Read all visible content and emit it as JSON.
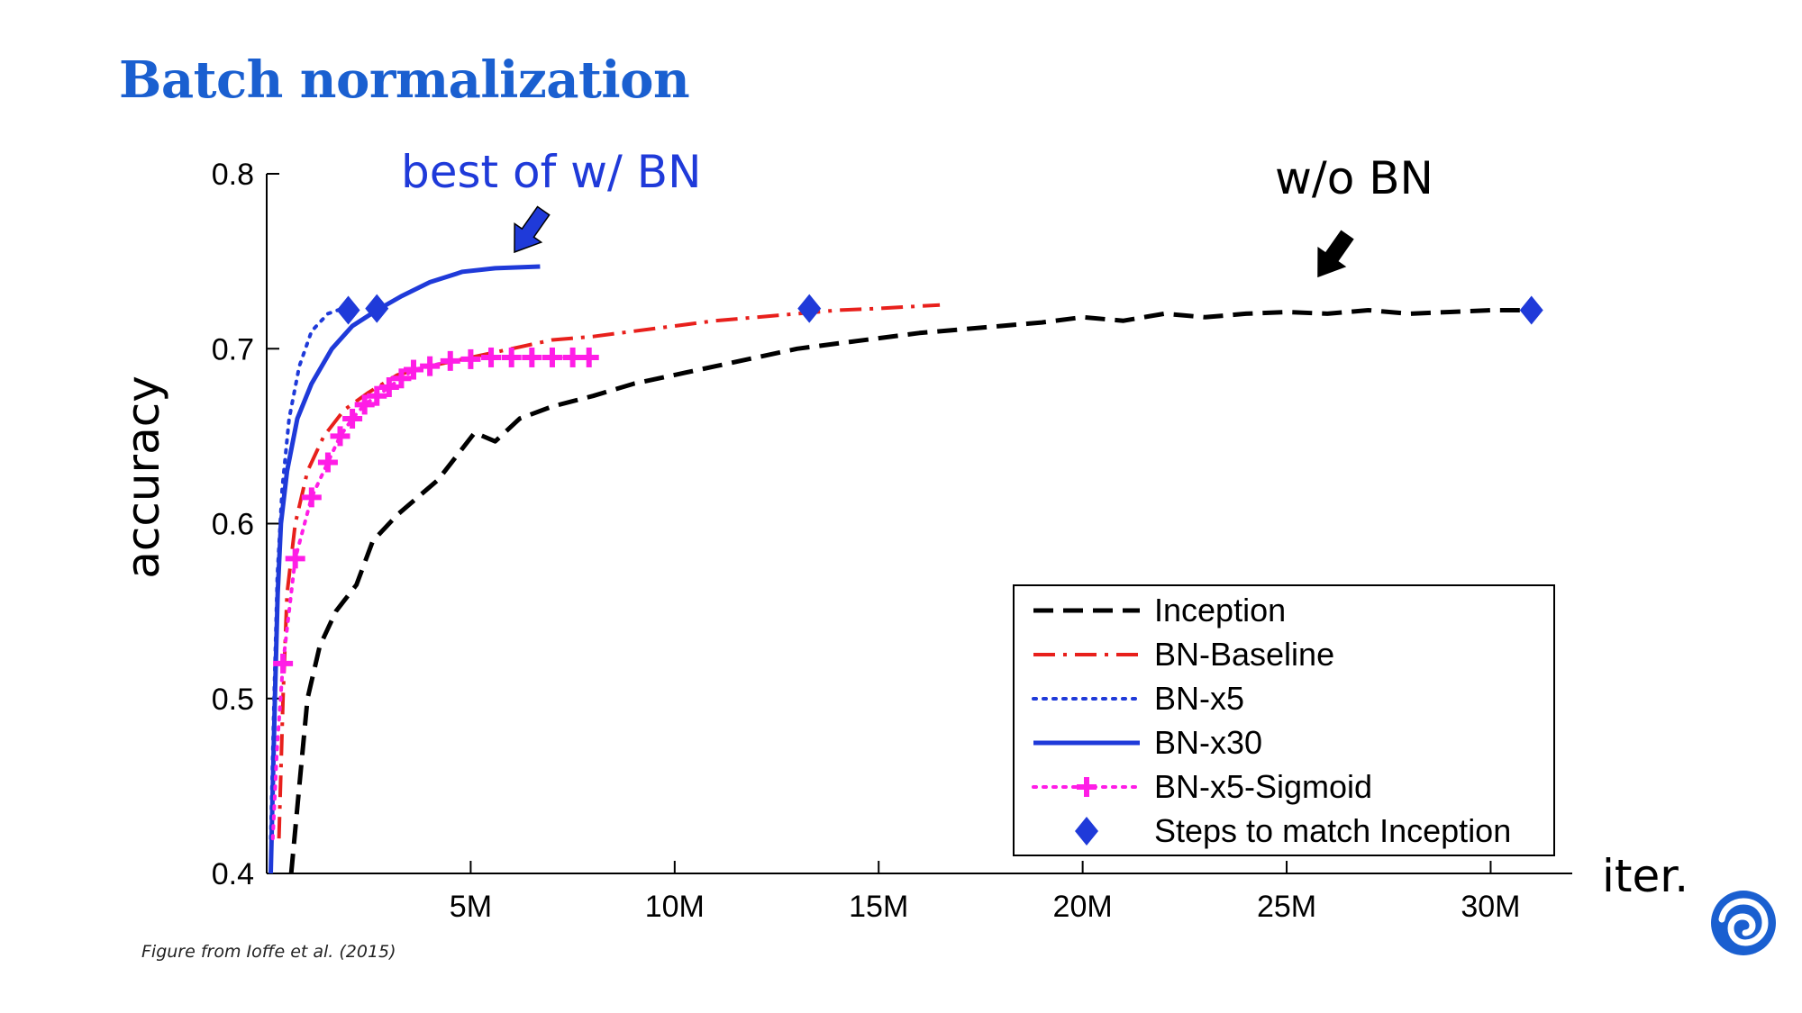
{
  "slide": {
    "title": "Batch normalization",
    "caption": "Figure from Ioffe et al. (2015)",
    "accent_color": "#1a5fd0"
  },
  "logo": {
    "icon": "swirl-logo-icon",
    "color": "#1a5fd0"
  },
  "chart_data": {
    "type": "line",
    "title": "",
    "xlabel": "iter.",
    "ylabel": "accuracy",
    "xlim": [
      0,
      32000000
    ],
    "ylim": [
      0.4,
      0.8
    ],
    "grid": false,
    "x_ticks": [
      {
        "value": 5000000,
        "label": "5M"
      },
      {
        "value": 10000000,
        "label": "10M"
      },
      {
        "value": 15000000,
        "label": "15M"
      },
      {
        "value": 20000000,
        "label": "20M"
      },
      {
        "value": 25000000,
        "label": "25M"
      },
      {
        "value": 30000000,
        "label": "30M"
      }
    ],
    "y_ticks": [
      {
        "value": 0.4,
        "label": "0.4"
      },
      {
        "value": 0.5,
        "label": "0.5"
      },
      {
        "value": 0.6,
        "label": "0.6"
      },
      {
        "value": 0.7,
        "label": "0.7"
      },
      {
        "value": 0.8,
        "label": "0.8"
      }
    ],
    "legend_position": "bottom-right",
    "series": [
      {
        "name": "Inception",
        "color": "#000000",
        "style": "dashed",
        "points": [
          [
            600000,
            0.4
          ],
          [
            800000,
            0.45
          ],
          [
            1000000,
            0.5
          ],
          [
            1300000,
            0.53
          ],
          [
            1700000,
            0.55
          ],
          [
            2200000,
            0.565
          ],
          [
            2600000,
            0.59
          ],
          [
            3200000,
            0.605
          ],
          [
            3700000,
            0.615
          ],
          [
            4200000,
            0.625
          ],
          [
            4700000,
            0.64
          ],
          [
            5100000,
            0.652
          ],
          [
            5600000,
            0.647
          ],
          [
            6200000,
            0.66
          ],
          [
            7000000,
            0.667
          ],
          [
            8000000,
            0.673
          ],
          [
            9000000,
            0.68
          ],
          [
            10000000,
            0.685
          ],
          [
            11000000,
            0.69
          ],
          [
            12000000,
            0.695
          ],
          [
            13000000,
            0.7
          ],
          [
            14000000,
            0.703
          ],
          [
            15000000,
            0.706
          ],
          [
            16000000,
            0.709
          ],
          [
            17000000,
            0.711
          ],
          [
            18000000,
            0.713
          ],
          [
            19000000,
            0.715
          ],
          [
            20000000,
            0.718
          ],
          [
            21000000,
            0.716
          ],
          [
            22000000,
            0.72
          ],
          [
            23000000,
            0.718
          ],
          [
            24000000,
            0.72
          ],
          [
            25000000,
            0.721
          ],
          [
            26000000,
            0.72
          ],
          [
            27000000,
            0.722
          ],
          [
            28000000,
            0.72
          ],
          [
            29000000,
            0.721
          ],
          [
            30000000,
            0.722
          ],
          [
            31000000,
            0.722
          ]
        ]
      },
      {
        "name": "BN-Baseline",
        "color": "#e8201c",
        "style": "dash-dot",
        "points": [
          [
            300000,
            0.42
          ],
          [
            400000,
            0.5
          ],
          [
            500000,
            0.56
          ],
          [
            700000,
            0.6
          ],
          [
            1000000,
            0.63
          ],
          [
            1400000,
            0.65
          ],
          [
            1900000,
            0.665
          ],
          [
            2500000,
            0.675
          ],
          [
            3200000,
            0.685
          ],
          [
            4000000,
            0.69
          ],
          [
            5000000,
            0.695
          ],
          [
            6000000,
            0.7
          ],
          [
            7000000,
            0.705
          ],
          [
            8000000,
            0.707
          ],
          [
            9000000,
            0.71
          ],
          [
            10000000,
            0.713
          ],
          [
            11000000,
            0.716
          ],
          [
            12000000,
            0.718
          ],
          [
            13000000,
            0.72
          ],
          [
            14000000,
            0.722
          ],
          [
            15000000,
            0.723
          ],
          [
            16500000,
            0.725
          ]
        ]
      },
      {
        "name": "BN-x5",
        "color": "#1f3ad9",
        "style": "dotted",
        "points": [
          [
            100000,
            0.42
          ],
          [
            180000,
            0.5
          ],
          [
            260000,
            0.57
          ],
          [
            380000,
            0.62
          ],
          [
            550000,
            0.66
          ],
          [
            800000,
            0.69
          ],
          [
            1100000,
            0.71
          ],
          [
            1500000,
            0.72
          ],
          [
            2100000,
            0.725
          ]
        ]
      },
      {
        "name": "BN-x30",
        "color": "#1f3ad9",
        "style": "solid",
        "points": [
          [
            100000,
            0.4
          ],
          [
            150000,
            0.45
          ],
          [
            200000,
            0.5
          ],
          [
            270000,
            0.56
          ],
          [
            350000,
            0.6
          ],
          [
            500000,
            0.63
          ],
          [
            750000,
            0.66
          ],
          [
            1100000,
            0.68
          ],
          [
            1600000,
            0.7
          ],
          [
            2100000,
            0.713
          ],
          [
            2700000,
            0.722
          ],
          [
            3300000,
            0.73
          ],
          [
            4000000,
            0.738
          ],
          [
            4800000,
            0.744
          ],
          [
            5600000,
            0.746
          ],
          [
            6700000,
            0.747
          ]
        ]
      },
      {
        "name": "BN-x5-Sigmoid",
        "color": "#ff1de6",
        "style": "dotted-plus",
        "points": [
          [
            150000,
            0.42
          ],
          [
            250000,
            0.47
          ],
          [
            400000,
            0.52
          ],
          [
            700000,
            0.58
          ],
          [
            1100000,
            0.615
          ],
          [
            1500000,
            0.635
          ],
          [
            1800000,
            0.65
          ],
          [
            2100000,
            0.66
          ],
          [
            2400000,
            0.668
          ],
          [
            2700000,
            0.673
          ],
          [
            3000000,
            0.678
          ],
          [
            3300000,
            0.683
          ],
          [
            3600000,
            0.688
          ],
          [
            4000000,
            0.69
          ],
          [
            4500000,
            0.693
          ],
          [
            5000000,
            0.694
          ],
          [
            5500000,
            0.695
          ],
          [
            6000000,
            0.695
          ],
          [
            6500000,
            0.695
          ],
          [
            7000000,
            0.695
          ],
          [
            7500000,
            0.695
          ],
          [
            7900000,
            0.695
          ]
        ]
      }
    ],
    "markers": {
      "name": "Steps to match Inception",
      "color": "#1f3ad9",
      "shape": "diamond",
      "points": [
        [
          2000000,
          0.722
        ],
        [
          2700000,
          0.723
        ],
        [
          13300000,
          0.723
        ],
        [
          31000000,
          0.722
        ]
      ]
    },
    "annotations": [
      {
        "text": "best of w/ BN",
        "color": "#1f3ad9",
        "target": [
          6300000,
          0.75
        ]
      },
      {
        "text": "w/o BN",
        "color": "#000000",
        "target": [
          25800000,
          0.74
        ]
      }
    ]
  }
}
